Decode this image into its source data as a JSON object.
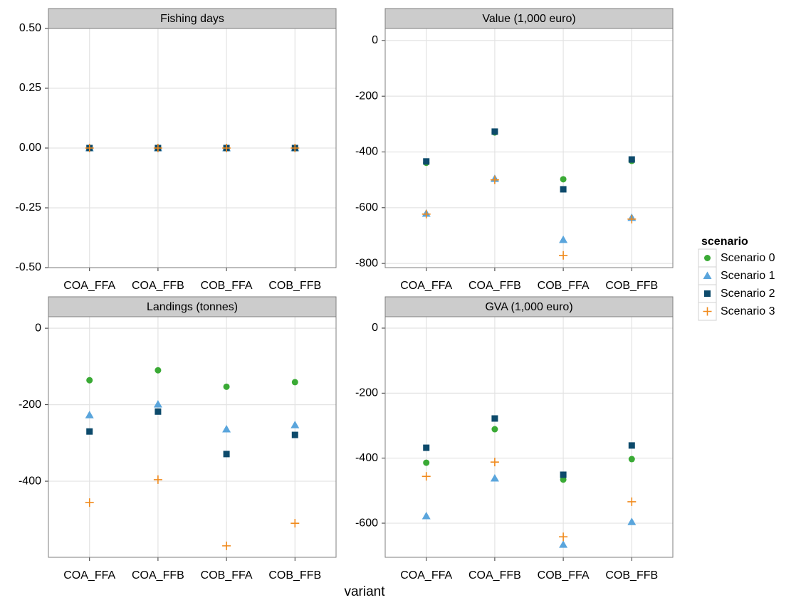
{
  "chart_data": [
    {
      "type": "scatter",
      "title": "Fishing days",
      "categories": [
        "COA_FFA",
        "COA_FFB",
        "COB_FFA",
        "COB_FFB"
      ],
      "ylim": [
        -0.5,
        0.5
      ],
      "yticks": [
        {
          "value": 0.5,
          "label": "0.50"
        },
        {
          "value": 0.25,
          "label": "0.25"
        },
        {
          "value": 0,
          "label": "0.00"
        },
        {
          "value": -0.25,
          "label": "-0.25"
        },
        {
          "value": -0.5,
          "label": "-0.50"
        }
      ],
      "grid": true,
      "series": [
        {
          "name": "Scenario 0",
          "color": "#3aaa35",
          "marker": "circle",
          "values": [
            0,
            0,
            0,
            0
          ]
        },
        {
          "name": "Scenario 1",
          "color": "#5aa5dc",
          "marker": "triangle",
          "values": [
            0,
            0,
            0,
            0
          ]
        },
        {
          "name": "Scenario 2",
          "color": "#0d4a6b",
          "marker": "square",
          "values": [
            0,
            0,
            0,
            0
          ]
        },
        {
          "name": "Scenario 3",
          "color": "#f08a1c",
          "marker": "plus",
          "values": [
            0,
            0,
            0,
            0
          ]
        }
      ]
    },
    {
      "type": "scatter",
      "title": "Value (1,000 euro)",
      "categories": [
        "COA_FFA",
        "COA_FFB",
        "COB_FFA",
        "COB_FFB"
      ],
      "ylim": [
        -815,
        43
      ],
      "yticks": [
        0,
        -200,
        -400,
        -600,
        -800
      ],
      "grid": true,
      "series": [
        {
          "name": "Scenario 0",
          "color": "#3aaa35",
          "marker": "circle",
          "values": [
            -439,
            -330,
            -498,
            -432
          ]
        },
        {
          "name": "Scenario 1",
          "color": "#5aa5dc",
          "marker": "triangle",
          "values": [
            -621,
            -496,
            -715,
            -636
          ]
        },
        {
          "name": "Scenario 2",
          "color": "#0d4a6b",
          "marker": "square",
          "values": [
            -434,
            -327,
            -534,
            -427
          ]
        },
        {
          "name": "Scenario 3",
          "color": "#f08a1c",
          "marker": "plus",
          "values": [
            -623,
            -500,
            -771,
            -641
          ]
        }
      ]
    },
    {
      "type": "scatter",
      "title": "Landings (tonnes)",
      "categories": [
        "COA_FFA",
        "COA_FFB",
        "COB_FFA",
        "COB_FFB"
      ],
      "ylim": [
        -599,
        30
      ],
      "yticks": [
        0,
        -200,
        -400
      ],
      "grid": true,
      "series": [
        {
          "name": "Scenario 0",
          "color": "#3aaa35",
          "marker": "circle",
          "values": [
            -136,
            -110,
            -153,
            -141
          ]
        },
        {
          "name": "Scenario 1",
          "color": "#5aa5dc",
          "marker": "triangle",
          "values": [
            -227,
            -199,
            -264,
            -253
          ]
        },
        {
          "name": "Scenario 2",
          "color": "#0d4a6b",
          "marker": "square",
          "values": [
            -270,
            -218,
            -329,
            -279
          ]
        },
        {
          "name": "Scenario 3",
          "color": "#f08a1c",
          "marker": "plus",
          "values": [
            -456,
            -396,
            -569,
            -510
          ]
        }
      ]
    },
    {
      "type": "scatter",
      "title": "GVA (1,000 euro)",
      "categories": [
        "COA_FFA",
        "COA_FFB",
        "COB_FFA",
        "COB_FFB"
      ],
      "ylim": [
        -705,
        35
      ],
      "yticks": [
        0,
        -200,
        -400,
        -600
      ],
      "grid": true,
      "series": [
        {
          "name": "Scenario 0",
          "color": "#3aaa35",
          "marker": "circle",
          "values": [
            -414,
            -311,
            -466,
            -403
          ]
        },
        {
          "name": "Scenario 1",
          "color": "#5aa5dc",
          "marker": "triangle",
          "values": [
            -578,
            -462,
            -666,
            -596
          ]
        },
        {
          "name": "Scenario 2",
          "color": "#0d4a6b",
          "marker": "square",
          "values": [
            -368,
            -278,
            -451,
            -361
          ]
        },
        {
          "name": "Scenario 3",
          "color": "#f08a1c",
          "marker": "plus",
          "values": [
            -456,
            -412,
            -642,
            -534
          ]
        }
      ]
    }
  ],
  "xlabel": "variant",
  "legend_title": "scenario"
}
